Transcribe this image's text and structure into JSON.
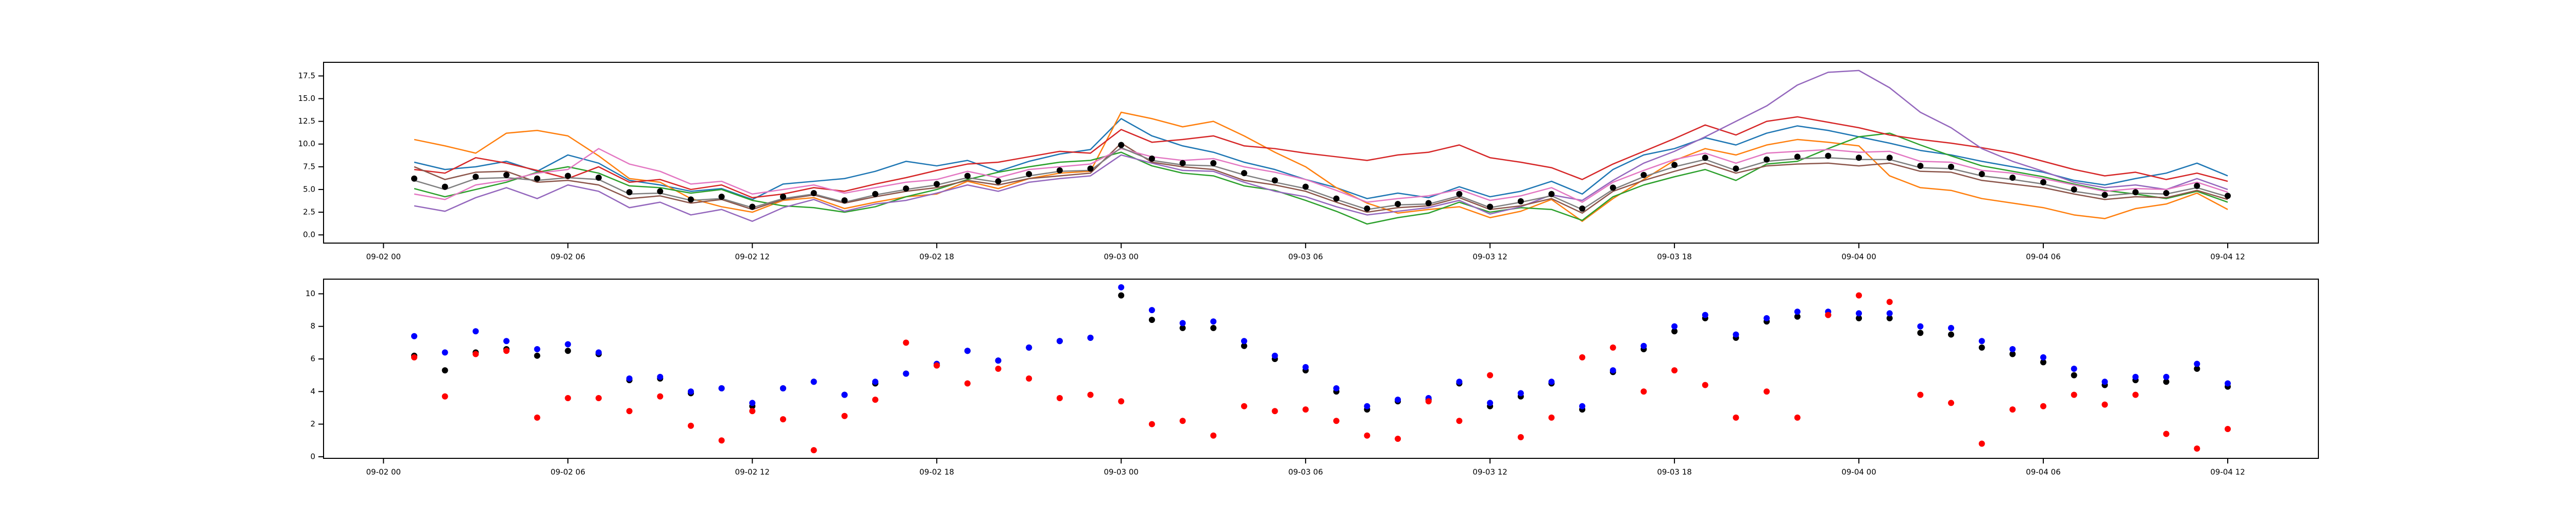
{
  "chart_data": [
    {
      "type": "line",
      "x": [
        "09-02 01",
        "09-02 02",
        "09-02 03",
        "09-02 04",
        "09-02 05",
        "09-02 06",
        "09-02 07",
        "09-02 08",
        "09-02 09",
        "09-02 10",
        "09-02 11",
        "09-02 12",
        "09-02 13",
        "09-02 14",
        "09-02 15",
        "09-02 16",
        "09-02 17",
        "09-02 18",
        "09-02 19",
        "09-02 20",
        "09-02 21",
        "09-02 22",
        "09-02 23",
        "09-03 00",
        "09-03 01",
        "09-03 02",
        "09-03 03",
        "09-03 04",
        "09-03 05",
        "09-03 06",
        "09-03 07",
        "09-03 08",
        "09-03 09",
        "09-03 10",
        "09-03 11",
        "09-03 12",
        "09-03 13",
        "09-03 14",
        "09-03 15",
        "09-03 16",
        "09-03 17",
        "09-03 18",
        "09-03 19",
        "09-03 20",
        "09-03 21",
        "09-03 22",
        "09-03 23",
        "09-04 00",
        "09-04 01",
        "09-04 02",
        "09-04 03",
        "09-04 04",
        "09-04 05",
        "09-04 06",
        "09-04 07",
        "09-04 08",
        "09-04 09",
        "09-04 10",
        "09-04 11",
        "09-04 12"
      ],
      "xlim": [
        "09-01 22:03",
        "09-04 14:57"
      ],
      "xticks": [
        "09-02 00",
        "09-02 06",
        "09-02 12",
        "09-02 18",
        "09-03 00",
        "09-03 06",
        "09-03 12",
        "09-03 18",
        "09-04 00",
        "09-04 06",
        "09-04 12"
      ],
      "ylim": [
        -0.9,
        19.0
      ],
      "yticks": [
        {
          "value": 0,
          "label": "0.0"
        },
        2.5,
        {
          "value": 5,
          "label": "5.0"
        },
        7.5,
        {
          "value": 10,
          "label": "10.0"
        },
        12.5,
        {
          "value": 15,
          "label": "15.0"
        },
        17.5
      ],
      "series": [
        {
          "color": "#1f77b4",
          "values": [
            8.0,
            7.2,
            7.5,
            8.1,
            7.0,
            8.8,
            7.9,
            6.0,
            5.5,
            4.8,
            5.1,
            3.9,
            5.6,
            5.9,
            6.2,
            7.0,
            8.1,
            7.6,
            8.2,
            7.0,
            8.1,
            8.9,
            9.4,
            12.8,
            10.9,
            9.8,
            9.1,
            8.0,
            7.2,
            6.1,
            5.2,
            4.0,
            4.6,
            4.1,
            5.3,
            4.2,
            4.8,
            5.9,
            4.5,
            7.2,
            8.8,
            9.5,
            10.7,
            9.9,
            11.2,
            12.0,
            11.5,
            10.8,
            10.1,
            9.3,
            8.8,
            8.1,
            7.5,
            6.9,
            6.0,
            5.5,
            6.2,
            6.8,
            7.9,
            6.5
          ]
        },
        {
          "color": "#ff7f0e",
          "values": [
            10.5,
            9.8,
            9.0,
            11.2,
            11.5,
            10.9,
            8.7,
            6.2,
            5.8,
            4.0,
            3.1,
            2.5,
            3.8,
            4.1,
            2.9,
            3.6,
            4.2,
            4.5,
            5.9,
            5.1,
            6.2,
            6.8,
            7.0,
            13.5,
            12.8,
            11.9,
            12.5,
            10.9,
            9.1,
            7.5,
            5.2,
            3.5,
            2.4,
            2.8,
            3.1,
            1.9,
            2.6,
            3.9,
            1.5,
            4.0,
            6.1,
            8.2,
            9.5,
            8.8,
            9.9,
            10.5,
            10.2,
            9.8,
            6.5,
            5.2,
            4.9,
            4.0,
            3.5,
            3.0,
            2.2,
            1.8,
            2.9,
            3.4,
            4.6,
            2.8
          ]
        },
        {
          "color": "#2ca02c",
          "values": [
            5.1,
            4.2,
            5.0,
            5.8,
            6.9,
            7.5,
            6.8,
            5.4,
            5.2,
            4.6,
            5.0,
            3.8,
            3.2,
            3.0,
            2.5,
            3.1,
            4.2,
            5.0,
            6.1,
            6.9,
            7.5,
            8.0,
            8.2,
            9.1,
            7.6,
            6.8,
            6.5,
            5.4,
            4.9,
            3.8,
            2.6,
            1.2,
            1.9,
            2.4,
            3.6,
            2.5,
            3.0,
            2.8,
            1.6,
            4.2,
            5.5,
            6.4,
            7.2,
            6.0,
            7.8,
            8.1,
            9.5,
            10.8,
            11.2,
            9.9,
            8.7,
            7.6,
            7.0,
            6.4,
            5.6,
            4.9,
            4.5,
            4.0,
            4.8,
            3.6
          ]
        },
        {
          "color": "#d62728",
          "values": [
            7.2,
            6.8,
            8.5,
            7.9,
            7.1,
            6.2,
            7.5,
            5.8,
            6.1,
            5.0,
            5.5,
            4.1,
            4.5,
            5.2,
            4.8,
            5.6,
            6.3,
            7.1,
            7.8,
            8.0,
            8.6,
            9.2,
            9.0,
            11.6,
            10.2,
            10.5,
            10.9,
            9.8,
            9.5,
            9.0,
            8.6,
            8.2,
            8.8,
            9.1,
            9.9,
            8.5,
            8.0,
            7.4,
            6.1,
            7.8,
            9.2,
            10.6,
            12.1,
            11.0,
            12.5,
            13.0,
            12.4,
            11.8,
            11.0,
            10.5,
            10.1,
            9.6,
            9.0,
            8.1,
            7.2,
            6.5,
            6.9,
            6.1,
            6.8,
            5.9
          ]
        },
        {
          "color": "#9467bd",
          "values": [
            3.2,
            2.6,
            4.1,
            5.2,
            4.0,
            5.5,
            4.8,
            3.0,
            3.6,
            2.2,
            2.8,
            1.5,
            3.0,
            3.9,
            2.6,
            3.4,
            3.8,
            4.6,
            5.5,
            4.8,
            5.8,
            6.2,
            6.5,
            8.8,
            7.9,
            7.1,
            7.0,
            5.8,
            4.8,
            4.2,
            3.1,
            2.2,
            2.6,
            3.0,
            3.8,
            2.3,
            3.1,
            4.4,
            3.8,
            6.0,
            7.9,
            9.2,
            10.8,
            12.5,
            14.2,
            16.5,
            17.9,
            18.1,
            16.2,
            13.5,
            11.8,
            9.5,
            8.1,
            7.0,
            5.8,
            5.2,
            5.5,
            5.0,
            6.2,
            5.0
          ]
        },
        {
          "color": "#8c564b",
          "values": [
            7.5,
            6.1,
            6.9,
            7.0,
            5.8,
            6.0,
            5.5,
            4.0,
            4.3,
            3.5,
            3.9,
            2.8,
            3.9,
            4.4,
            3.5,
            4.2,
            4.8,
            5.2,
            6.0,
            5.5,
            6.2,
            6.5,
            6.8,
            10.1,
            8.0,
            7.5,
            7.2,
            6.0,
            5.5,
            4.8,
            3.6,
            2.5,
            3.0,
            3.2,
            4.1,
            2.8,
            3.2,
            4.0,
            2.4,
            4.8,
            6.0,
            7.0,
            7.9,
            6.8,
            7.6,
            7.8,
            7.9,
            7.6,
            7.9,
            7.0,
            6.9,
            6.0,
            5.6,
            5.2,
            4.5,
            3.9,
            4.2,
            4.1,
            4.9,
            3.9
          ]
        },
        {
          "color": "#e377c2",
          "values": [
            4.5,
            3.9,
            5.5,
            6.0,
            6.8,
            7.2,
            9.5,
            7.8,
            7.0,
            5.6,
            5.9,
            4.5,
            5.0,
            5.5,
            4.6,
            5.2,
            5.8,
            6.1,
            7.0,
            6.3,
            7.2,
            7.5,
            7.8,
            9.5,
            8.6,
            8.2,
            8.4,
            7.5,
            6.9,
            6.1,
            4.9,
            3.6,
            4.0,
            4.3,
            5.0,
            3.8,
            4.3,
            5.2,
            3.6,
            5.8,
            7.1,
            8.3,
            9.0,
            7.9,
            9.0,
            9.2,
            9.4,
            9.1,
            9.2,
            8.1,
            8.0,
            7.1,
            6.8,
            6.2,
            5.5,
            4.8,
            5.1,
            5.0,
            5.8,
            4.7
          ]
        },
        {
          "color": "#7f7f7f",
          "values": [
            6.0,
            5.0,
            6.2,
            6.3,
            6.0,
            6.3,
            6.1,
            4.5,
            4.6,
            3.8,
            4.0,
            3.0,
            4.0,
            4.5,
            3.6,
            4.4,
            5.0,
            5.5,
            6.3,
            5.8,
            6.5,
            7.0,
            7.1,
            9.6,
            8.2,
            7.7,
            7.6,
            6.6,
            5.8,
            5.1,
            3.9,
            2.8,
            3.3,
            3.4,
            4.3,
            3.0,
            3.6,
            4.3,
            2.8,
            5.0,
            6.4,
            7.5,
            8.3,
            7.1,
            8.1,
            8.4,
            8.5,
            8.3,
            8.3,
            7.4,
            7.3,
            6.5,
            6.1,
            5.6,
            4.8,
            4.3,
            4.6,
            4.5,
            5.2,
            4.2
          ]
        },
        {
          "color": "#000000",
          "marker": "o",
          "values": [
            6.2,
            5.3,
            6.4,
            6.6,
            6.2,
            6.5,
            6.3,
            4.7,
            4.8,
            3.9,
            4.2,
            3.1,
            4.2,
            4.6,
            3.8,
            4.5,
            5.1,
            5.6,
            6.5,
            5.9,
            6.7,
            7.1,
            7.3,
            9.9,
            8.4,
            7.9,
            7.9,
            6.8,
            6.0,
            5.3,
            4.0,
            2.9,
            3.4,
            3.5,
            4.5,
            3.1,
            3.7,
            4.5,
            2.9,
            5.2,
            6.6,
            7.7,
            8.5,
            7.3,
            8.3,
            8.6,
            8.7,
            8.5,
            8.5,
            7.6,
            7.5,
            6.7,
            6.3,
            5.8,
            5.0,
            4.4,
            4.7,
            4.6,
            5.4,
            4.3
          ]
        }
      ]
    },
    {
      "type": "scatter",
      "x": [
        "09-02 01",
        "09-02 02",
        "09-02 03",
        "09-02 04",
        "09-02 05",
        "09-02 06",
        "09-02 07",
        "09-02 08",
        "09-02 09",
        "09-02 10",
        "09-02 11",
        "09-02 12",
        "09-02 13",
        "09-02 14",
        "09-02 15",
        "09-02 16",
        "09-02 17",
        "09-02 18",
        "09-02 19",
        "09-02 20",
        "09-02 21",
        "09-02 22",
        "09-02 23",
        "09-03 00",
        "09-03 01",
        "09-03 02",
        "09-03 03",
        "09-03 04",
        "09-03 05",
        "09-03 06",
        "09-03 07",
        "09-03 08",
        "09-03 09",
        "09-03 10",
        "09-03 11",
        "09-03 12",
        "09-03 13",
        "09-03 14",
        "09-03 15",
        "09-03 16",
        "09-03 17",
        "09-03 18",
        "09-03 19",
        "09-03 20",
        "09-03 21",
        "09-03 22",
        "09-03 23",
        "09-04 00",
        "09-04 01",
        "09-04 02",
        "09-04 03",
        "09-04 04",
        "09-04 05",
        "09-04 06",
        "09-04 07",
        "09-04 08",
        "09-04 09",
        "09-04 10",
        "09-04 11",
        "09-04 12"
      ],
      "xlim": [
        "09-01 22:03",
        "09-04 14:57"
      ],
      "xticks": [
        "09-02 00",
        "09-02 06",
        "09-02 12",
        "09-02 18",
        "09-03 00",
        "09-03 06",
        "09-03 12",
        "09-03 18",
        "09-04 00",
        "09-04 06",
        "09-04 12"
      ],
      "ylim": [
        -0.1,
        10.9
      ],
      "yticks": [
        0,
        2,
        4,
        6,
        8,
        10
      ],
      "series": [
        {
          "color": "#000000",
          "values": [
            6.2,
            5.3,
            6.4,
            6.6,
            6.2,
            6.5,
            6.3,
            4.7,
            4.8,
            3.9,
            4.2,
            3.1,
            4.2,
            4.6,
            3.8,
            4.5,
            5.1,
            5.6,
            6.5,
            5.9,
            6.7,
            7.1,
            7.3,
            9.9,
            8.4,
            7.9,
            7.9,
            6.8,
            6.0,
            5.3,
            4.0,
            2.9,
            3.4,
            3.5,
            4.5,
            3.1,
            3.7,
            4.5,
            2.9,
            5.2,
            6.6,
            7.7,
            8.5,
            7.3,
            8.3,
            8.6,
            8.7,
            8.5,
            8.5,
            7.6,
            7.5,
            6.7,
            6.3,
            5.8,
            5.0,
            4.4,
            4.7,
            4.6,
            5.4,
            4.3
          ]
        },
        {
          "color": "#0000ff",
          "values": [
            7.4,
            6.4,
            7.7,
            7.1,
            6.6,
            6.9,
            6.4,
            4.8,
            4.9,
            4.0,
            4.2,
            3.3,
            4.2,
            4.6,
            3.8,
            4.6,
            5.1,
            5.7,
            6.5,
            5.9,
            6.7,
            7.1,
            7.3,
            10.4,
            9.0,
            8.2,
            8.3,
            7.1,
            6.2,
            5.5,
            4.2,
            3.1,
            3.5,
            3.6,
            4.6,
            3.3,
            3.9,
            4.6,
            3.1,
            5.3,
            6.8,
            8.0,
            8.7,
            7.5,
            8.5,
            8.9,
            8.9,
            8.8,
            8.8,
            8.0,
            7.9,
            7.1,
            6.6,
            6.1,
            5.4,
            4.6,
            4.9,
            4.9,
            5.7,
            4.5
          ]
        },
        {
          "color": "#ff0000",
          "values": [
            6.1,
            3.7,
            6.3,
            6.5,
            2.4,
            3.6,
            3.6,
            2.8,
            3.7,
            1.9,
            1.0,
            2.8,
            2.3,
            0.4,
            2.5,
            3.5,
            7.0,
            5.6,
            4.5,
            5.4,
            4.8,
            3.6,
            3.8,
            3.4,
            2.0,
            2.2,
            1.3,
            3.1,
            2.8,
            2.9,
            2.2,
            1.3,
            1.1,
            3.4,
            2.2,
            5.0,
            1.2,
            2.4,
            6.1,
            6.7,
            4.0,
            5.3,
            4.4,
            2.4,
            4.0,
            2.4,
            8.7,
            9.9,
            9.5,
            3.8,
            3.3,
            0.8,
            2.9,
            3.1,
            3.8,
            3.2,
            3.8,
            1.4,
            0.5,
            1.7
          ]
        }
      ]
    }
  ]
}
